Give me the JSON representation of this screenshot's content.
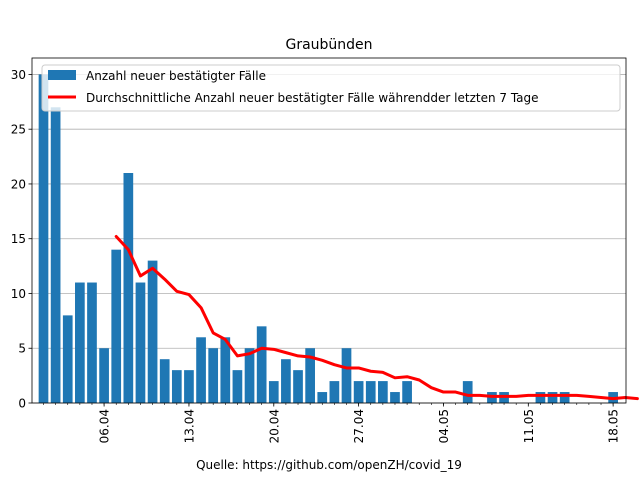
{
  "chart_data": {
    "type": "bar",
    "title": "Graubünden",
    "source_note": "Quelle: https://github.com/openZH/covid_19",
    "xlabel": "",
    "ylabel": "",
    "ylim": [
      0,
      31.5
    ],
    "y_ticks": [
      0,
      5,
      10,
      15,
      20,
      25,
      30
    ],
    "grid": "horizontal",
    "legend_position": "top-left",
    "x_ticks": [
      {
        "index": 5,
        "label": "06.04"
      },
      {
        "index": 12,
        "label": "13.04"
      },
      {
        "index": 19,
        "label": "20.04"
      },
      {
        "index": 26,
        "label": "27.04"
      },
      {
        "index": 33,
        "label": "04.05"
      },
      {
        "index": 40,
        "label": "11.05"
      },
      {
        "index": 47,
        "label": "18.05"
      }
    ],
    "series": [
      {
        "name": "Anzahl neuer bestätigter Fälle",
        "kind": "bar",
        "color": "#1f77b4",
        "values": [
          30,
          27,
          8,
          11,
          11,
          5,
          14,
          21,
          11,
          13,
          4,
          3,
          3,
          6,
          5,
          6,
          3,
          5,
          7,
          2,
          4,
          3,
          5,
          1,
          2,
          5,
          2,
          2,
          2,
          1,
          2,
          0,
          0,
          0,
          0,
          2,
          0,
          1,
          1,
          0,
          0,
          1,
          1,
          1,
          0,
          0,
          0,
          1
        ]
      },
      {
        "name": "Durchschnittliche Anzahl neuer bestätigter Fälle währendder letzten 7 Tage",
        "kind": "line",
        "color": "#ff0000",
        "start_index": 6,
        "values": [
          15.2,
          14.0,
          11.6,
          12.3,
          11.3,
          10.2,
          9.9,
          8.7,
          6.4,
          5.8,
          4.3,
          4.5,
          5.0,
          4.9,
          4.6,
          4.3,
          4.2,
          3.9,
          3.5,
          3.2,
          3.2,
          2.9,
          2.8,
          2.3,
          2.4,
          2.1,
          1.4,
          1.0,
          1.0,
          0.7,
          0.7,
          0.6,
          0.6,
          0.6,
          0.7,
          0.7,
          0.7,
          0.7,
          0.7,
          0.6,
          0.5,
          0.4,
          0.5,
          0.4
        ]
      }
    ]
  }
}
